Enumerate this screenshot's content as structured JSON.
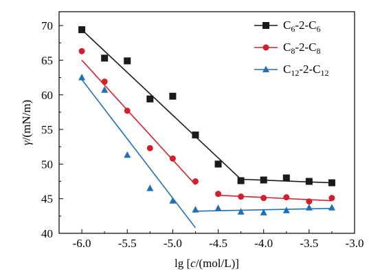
{
  "chart_data": {
    "type": "scatter",
    "title": "",
    "xlabel_parts": {
      "prefix": "lg [",
      "italic": "c",
      "suffix": "/(mol/L)]"
    },
    "ylabel_parts": {
      "italic": "γ",
      "suffix": "/(mN/m)"
    },
    "xlim": [
      -6.25,
      -3.0
    ],
    "ylim": [
      40,
      72
    ],
    "xticks": [
      -6.0,
      -5.5,
      -5.0,
      -4.5,
      -4.0,
      -3.5,
      -3.0
    ],
    "xtick_labels": [
      "-6.0",
      "-5.5",
      "-5.0",
      "-4.5",
      "-4.0",
      "-3.5",
      "-3.0"
    ],
    "yticks": [
      40,
      45,
      50,
      55,
      60,
      65,
      70
    ],
    "ytick_labels": [
      "40",
      "45",
      "50",
      "55",
      "60",
      "65",
      "70"
    ],
    "x_minor_ticks": [
      -6.25,
      -5.75,
      -5.25,
      -4.75,
      -4.25,
      -3.75,
      -3.25
    ],
    "y_minor_ticks": [
      42.5,
      47.5,
      52.5,
      57.5,
      62.5,
      67.5
    ],
    "legend_position": "top-right",
    "series": [
      {
        "legend": {
          "base": "C",
          "sub1": "6",
          "mid": "-2-C",
          "sub2": "6"
        },
        "color": "#1a1a1a",
        "marker": "square",
        "x": [
          -6.0,
          -5.75,
          -5.5,
          -5.25,
          -5.0,
          -4.75,
          -4.5,
          -4.25,
          -4.0,
          -3.75,
          -3.5,
          -3.25
        ],
        "y": [
          69.4,
          65.3,
          64.9,
          59.4,
          59.8,
          54.2,
          50.0,
          47.6,
          47.7,
          48.0,
          47.5,
          47.3
        ],
        "fit_lines": [
          [
            [
              -6.0,
              69.4
            ],
            [
              -4.25,
              47.8
            ]
          ],
          [
            [
              -4.25,
              47.8
            ],
            [
              -3.25,
              47.3
            ]
          ]
        ]
      },
      {
        "legend": {
          "base": "C",
          "sub1": "8",
          "mid": "-2-C",
          "sub2": "8"
        },
        "color": "#d0202e",
        "marker": "circle",
        "x": [
          -6.0,
          -5.75,
          -5.5,
          -5.25,
          -5.0,
          -4.75,
          -4.5,
          -4.25,
          -4.0,
          -3.75,
          -3.5,
          -3.25
        ],
        "y": [
          66.3,
          61.9,
          57.7,
          52.3,
          50.8,
          47.5,
          45.7,
          45.3,
          45.1,
          45.2,
          44.6,
          45.1
        ],
        "fit_lines": [
          [
            [
              -6.0,
              65.0
            ],
            [
              -4.75,
              47.0
            ]
          ],
          [
            [
              -4.5,
              45.5
            ],
            [
              -3.25,
              44.7
            ]
          ]
        ]
      },
      {
        "legend": {
          "base": "C",
          "sub1": "12",
          "mid": "-2-C",
          "sub2": "12"
        },
        "color": "#1e6fb5",
        "marker": "triangle",
        "x": [
          -6.0,
          -5.75,
          -5.5,
          -5.25,
          -5.0,
          -4.75,
          -4.5,
          -4.25,
          -4.0,
          -3.75,
          -3.5,
          -3.25
        ],
        "y": [
          62.5,
          60.7,
          51.3,
          46.5,
          44.7,
          43.4,
          43.6,
          43.1,
          43.0,
          43.3,
          43.7,
          43.7
        ],
        "fit_lines": [
          [
            [
              -6.0,
              62.2
            ],
            [
              -4.75,
              40.8
            ]
          ],
          [
            [
              -4.75,
              43.2
            ],
            [
              -3.25,
              43.6
            ]
          ]
        ]
      }
    ]
  }
}
